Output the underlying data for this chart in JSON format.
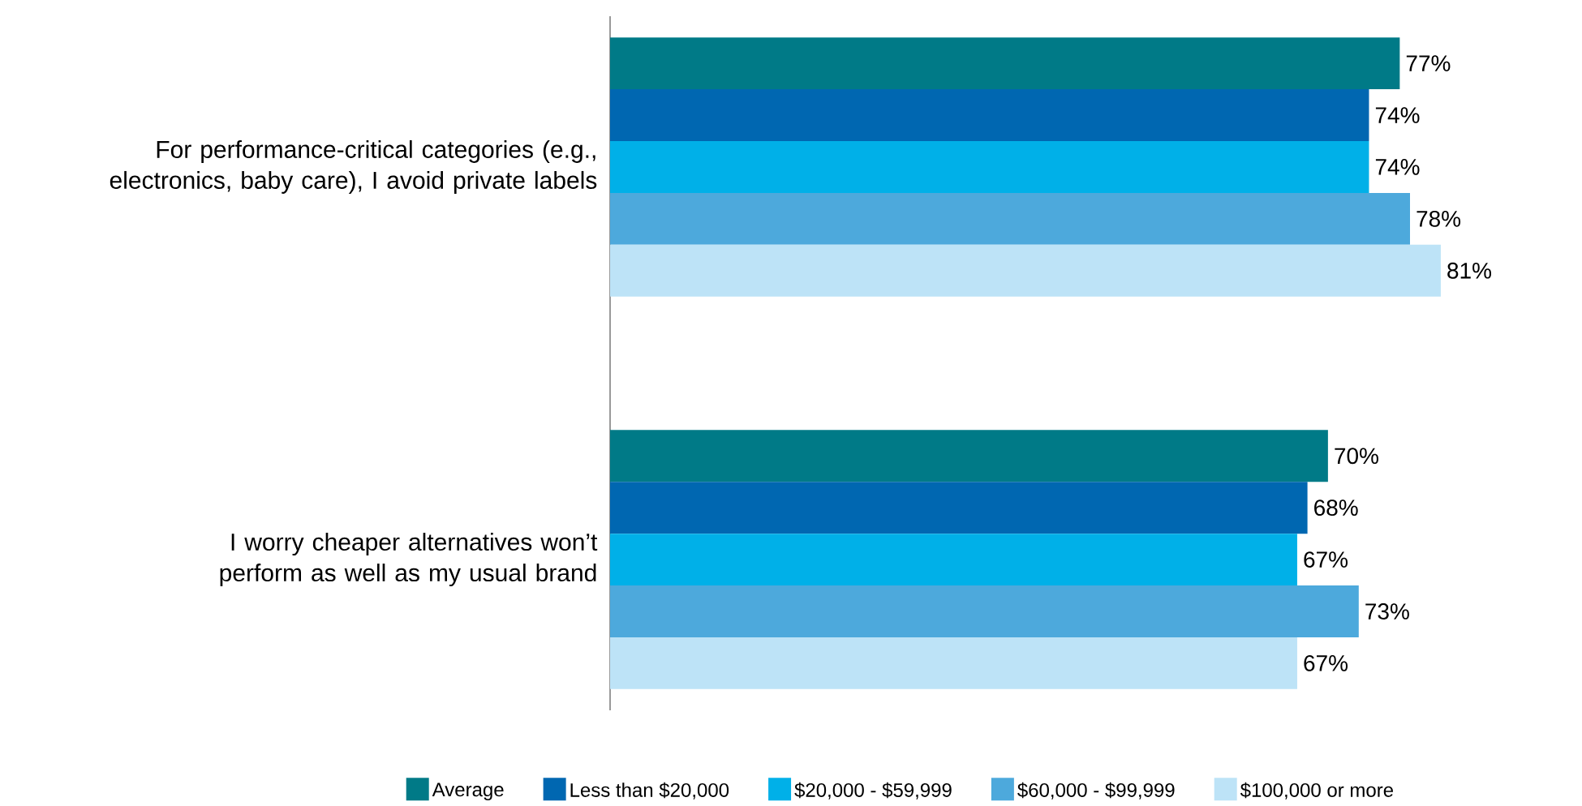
{
  "chart_data": {
    "type": "bar",
    "orientation": "horizontal",
    "categories": [
      "For performance-critical categories (e.g., electronics, baby care), I avoid private labels",
      "I worry cheaper alternatives won’t perform as well as my usual brand"
    ],
    "series": [
      {
        "name": "Average",
        "color": "#007a87",
        "values": [
          77,
          70
        ],
        "value_labels": [
          "77%",
          "70%"
        ]
      },
      {
        "name": "Less than $20,000",
        "color": "#0067b1",
        "values": [
          74,
          68
        ],
        "value_labels": [
          "74%",
          "68%"
        ]
      },
      {
        "name": "$20,000 - $59,999",
        "color": "#00b0e8",
        "values": [
          74,
          67
        ],
        "value_labels": [
          "74%",
          "67%"
        ]
      },
      {
        "name": "$60,000 - $99,999",
        "color": "#4da9dc",
        "values": [
          78,
          73
        ],
        "value_labels": [
          "78%",
          "73%"
        ]
      },
      {
        "name": "$100,000 or more",
        "color": "#bde3f7",
        "values": [
          81,
          67
        ],
        "value_labels": [
          "81%",
          "67%"
        ]
      }
    ],
    "legend": "bottom"
  }
}
